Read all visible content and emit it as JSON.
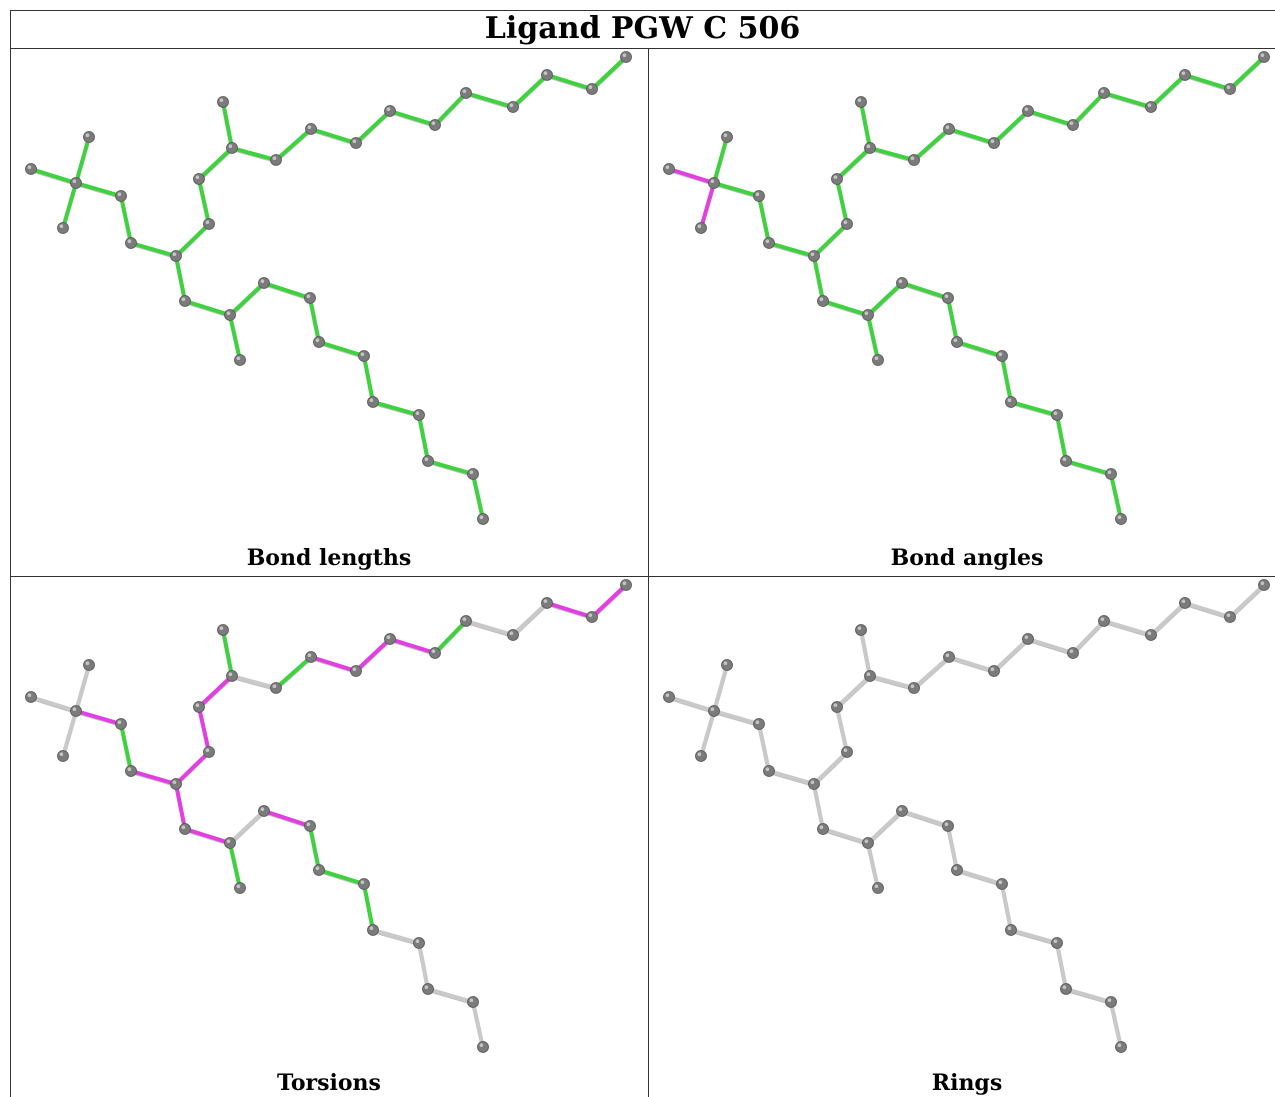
{
  "title": "Ligand PGW C 506",
  "panels": [
    {
      "caption": "Bond lengths"
    },
    {
      "caption": "Bond angles"
    },
    {
      "caption": "Torsions"
    },
    {
      "caption": "Rings"
    }
  ],
  "colors": {
    "ok": "#3ed23e",
    "outlier": "#e23ee2",
    "neutral": "#c9c9c9",
    "atom": "#7b7b7b",
    "border": "#333333"
  },
  "bond_states": {
    "bond_lengths": {
      "default": "ok",
      "outlier_bonds": []
    },
    "bond_angles": {
      "default": "ok",
      "outlier_bonds": [
        [
          0,
          1
        ],
        [
          1,
          3
        ]
      ]
    },
    "torsions": {
      "default": "neutral",
      "ok_bonds": [
        [
          4,
          5
        ],
        [
          8,
          9
        ],
        [
          12,
          13
        ],
        [
          14,
          15
        ],
        [
          18,
          19
        ],
        [
          23,
          24
        ],
        [
          25,
          26
        ],
        [
          26,
          27
        ],
        [
          27,
          28
        ]
      ],
      "outlier_bonds": [
        [
          1,
          4
        ],
        [
          5,
          6
        ],
        [
          6,
          7
        ],
        [
          6,
          10
        ],
        [
          7,
          8
        ],
        [
          10,
          11
        ],
        [
          11,
          12
        ],
        [
          13,
          14
        ],
        [
          15,
          16
        ],
        [
          16,
          17
        ],
        [
          17,
          18
        ],
        [
          21,
          22
        ],
        [
          22,
          23
        ],
        [
          24,
          25
        ]
      ]
    },
    "rings": {
      "default": "neutral",
      "outlier_bonds": []
    }
  }
}
